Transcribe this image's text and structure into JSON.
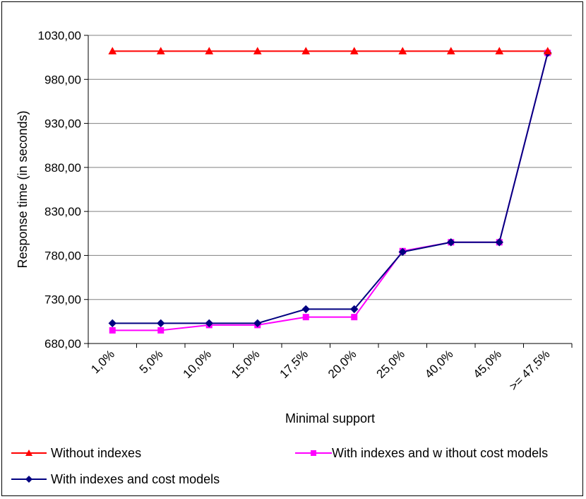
{
  "chart_data": {
    "type": "line",
    "xlabel": "Minimal support",
    "ylabel": "Response time (in seconds)",
    "ylim": [
      680,
      1030
    ],
    "yticks": [
      "680,00",
      "730,00",
      "780,00",
      "830,00",
      "880,00",
      "930,00",
      "980,00",
      "1030,00"
    ],
    "ytick_values": [
      680,
      730,
      780,
      830,
      880,
      930,
      980,
      1030
    ],
    "categories": [
      "1,0%",
      "5,0%",
      "10,0%",
      "15,0%",
      "17,5%",
      "20,0%",
      "25,0%",
      "40,0%",
      "45,0%",
      ">= 47,5%"
    ],
    "grid": true,
    "legend_position": "bottom",
    "series": [
      {
        "name": "Without indexes",
        "color": "#ff0000",
        "marker": "triangle",
        "values": [
          1012,
          1012,
          1012,
          1012,
          1012,
          1012,
          1012,
          1012,
          1012,
          1012
        ]
      },
      {
        "name": "With indexes and w ithout cost models",
        "color": "#ff00ff",
        "marker": "square",
        "values": [
          695,
          695,
          701,
          701,
          710,
          710,
          785,
          795,
          795,
          1010
        ]
      },
      {
        "name": "With indexes and cost models",
        "color": "#000080",
        "marker": "diamond",
        "values": [
          703,
          703,
          703,
          703,
          719,
          719,
          784,
          795,
          795,
          1010
        ]
      }
    ]
  }
}
